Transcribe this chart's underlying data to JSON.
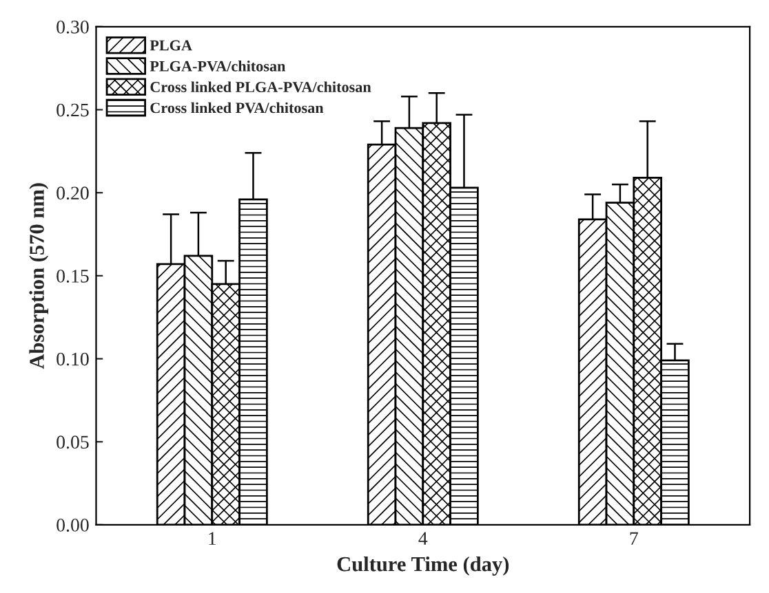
{
  "chart_data": {
    "type": "bar",
    "xlabel": "Culture Time (day)",
    "ylabel": "Absorption (570 nm)",
    "categories": [
      "1",
      "4",
      "7"
    ],
    "series": [
      {
        "name": "PLGA",
        "color": "#000000",
        "values": [
          0.157,
          0.229,
          0.184
        ],
        "errors": [
          [
            0.157,
            0.187
          ],
          [
            0.229,
            0.243
          ],
          [
            0.184,
            0.199
          ]
        ]
      },
      {
        "name": "PLGA-PVA/chitosan",
        "color": "#000000",
        "values": [
          0.162,
          0.239,
          0.194
        ],
        "errors": [
          [
            0.162,
            0.188
          ],
          [
            0.239,
            0.258
          ],
          [
            0.194,
            0.205
          ]
        ]
      },
      {
        "name": "Cross linked PLGA-PVA/chitosan",
        "color": "#000000",
        "values": [
          0.145,
          0.242,
          0.209
        ],
        "errors": [
          [
            0.145,
            0.159
          ],
          [
            0.242,
            0.26
          ],
          [
            0.209,
            0.243
          ]
        ]
      },
      {
        "name": "Cross linked PVA/chitosan",
        "color": "#000000",
        "values": [
          0.196,
          0.203,
          0.099
        ],
        "errors": [
          [
            0.196,
            0.224
          ],
          [
            0.203,
            0.247
          ],
          [
            0.099,
            0.109
          ]
        ]
      }
    ],
    "ylim": [
      0,
      0.3
    ],
    "yticks": [
      {
        "value": 0,
        "label": "0.00"
      },
      {
        "value": 0.05,
        "label": "0.05"
      },
      {
        "value": 0.1,
        "label": "0.10"
      },
      {
        "value": 0.15,
        "label": "0.15"
      },
      {
        "value": 0.2,
        "label": "0.20"
      },
      {
        "value": 0.25,
        "label": "0.25"
      },
      {
        "value": 0.3,
        "label": "0.30"
      }
    ],
    "legend": "top left",
    "grid": false
  }
}
